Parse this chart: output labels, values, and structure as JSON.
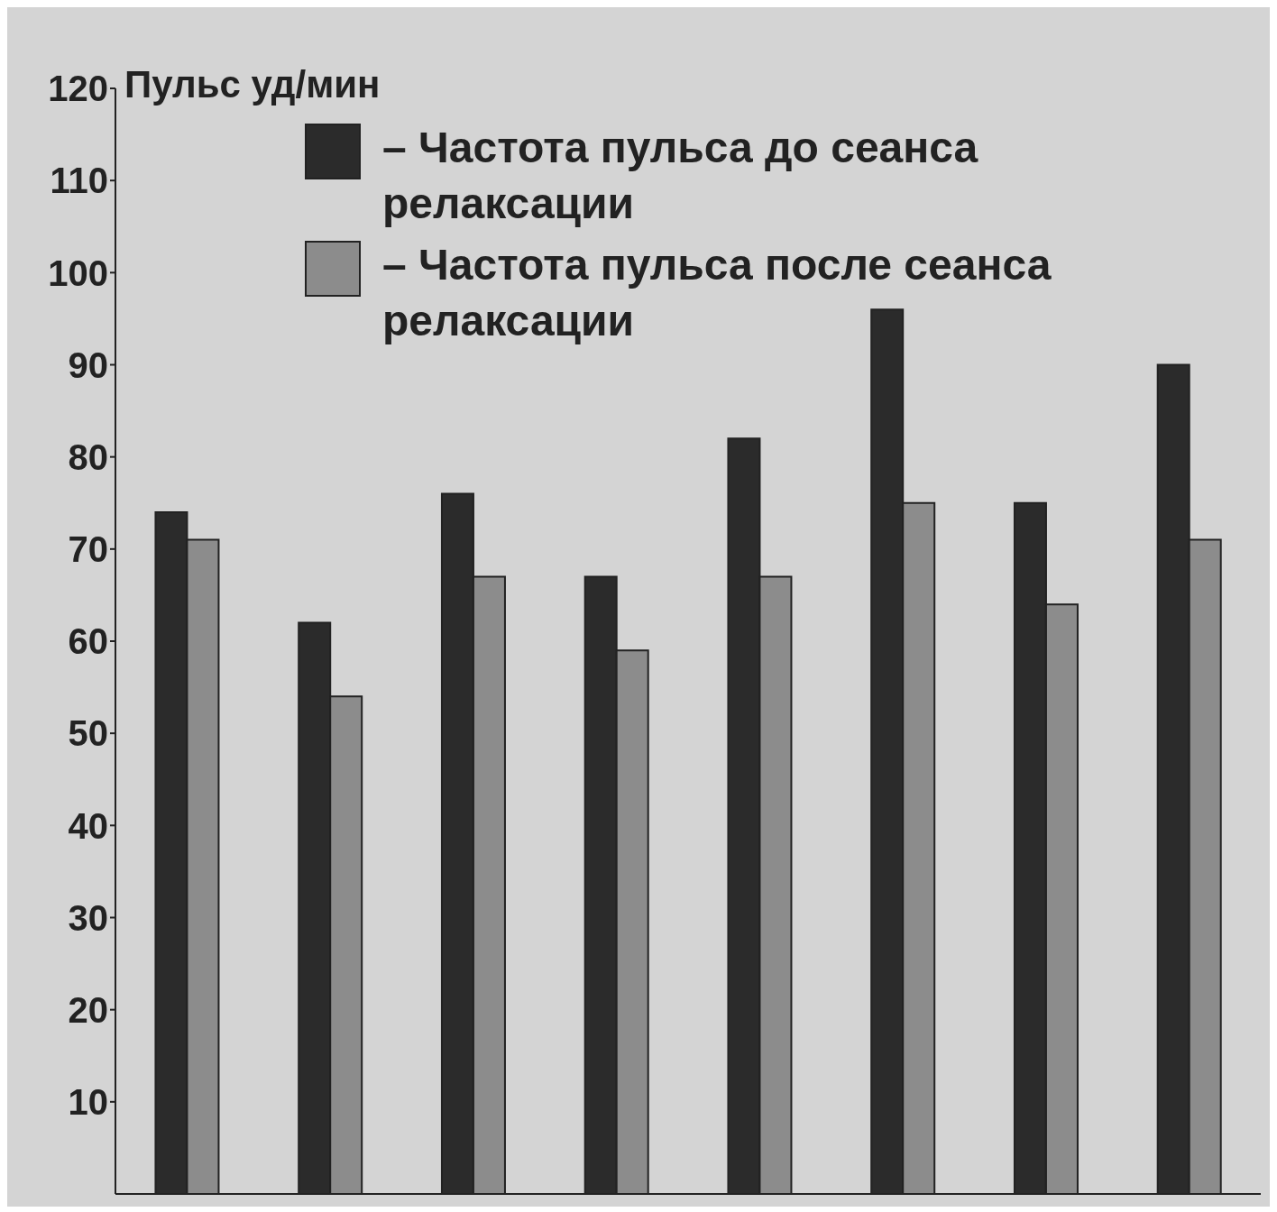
{
  "chart_data": {
    "type": "bar",
    "ylabel": "Пульс уд/мин",
    "categories": [
      null,
      null,
      null,
      null,
      null,
      null,
      null,
      null
    ],
    "series": [
      {
        "name": "– Частота пульса до сеанса релаксации",
        "color": "#2b2b2b",
        "values": [
          74,
          62,
          76,
          67,
          82,
          96,
          75,
          90
        ]
      },
      {
        "name": "– Частота пульса после сеанса релаксации",
        "color": "#8c8c8c",
        "values": [
          71,
          54,
          67,
          59,
          67,
          75,
          64,
          71
        ]
      }
    ],
    "ylim": [
      0,
      120
    ],
    "yticks": [
      10,
      20,
      30,
      40,
      50,
      60,
      70,
      80,
      90,
      100,
      110,
      120
    ],
    "legend": "top",
    "tick_labels": "y"
  }
}
